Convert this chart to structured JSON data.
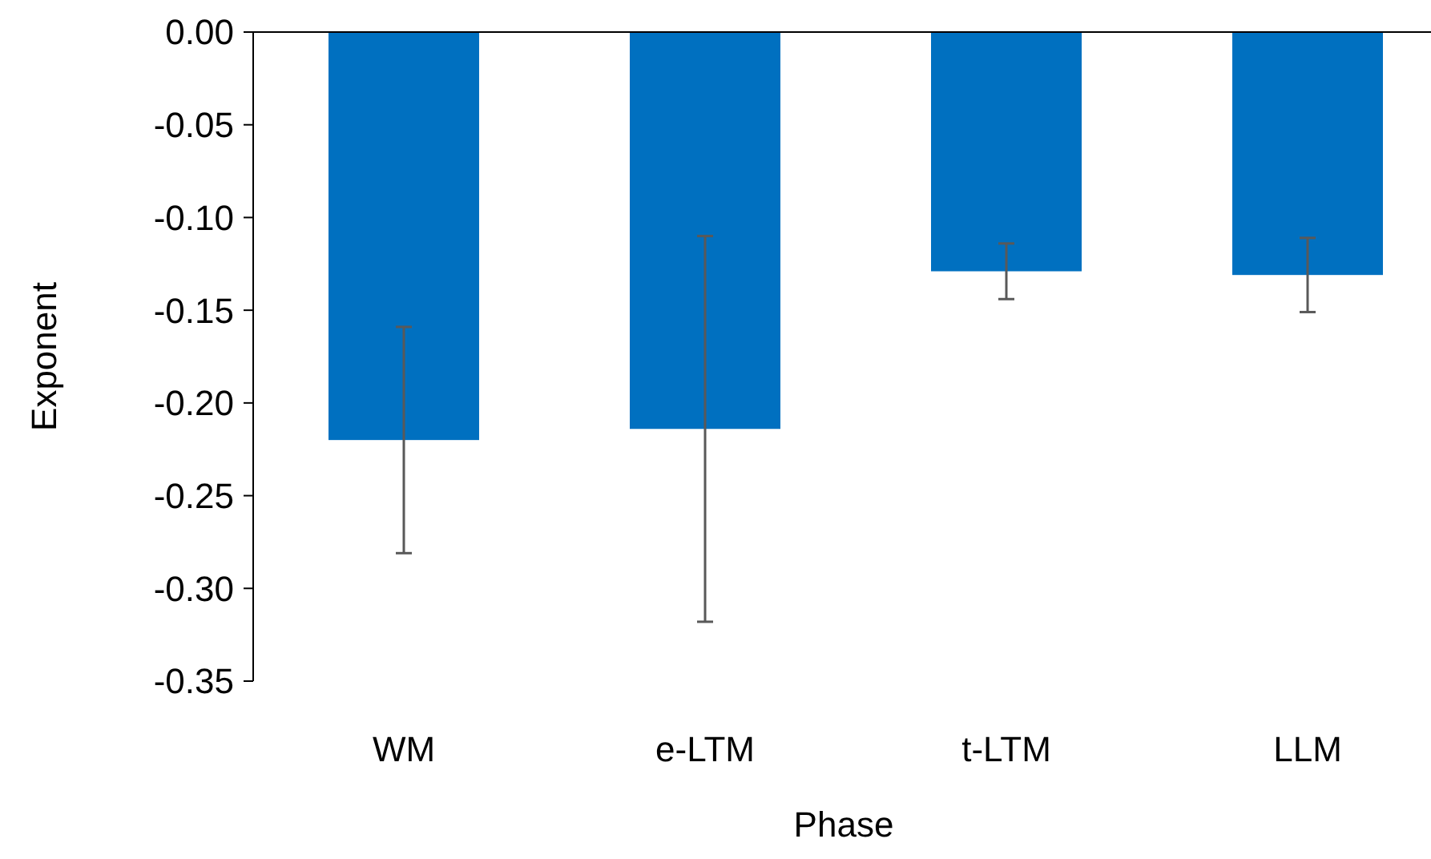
{
  "chart_data": {
    "type": "bar",
    "xlabel": "Phase",
    "ylabel": "Exponent",
    "categories": [
      "WM",
      "e-LTM",
      "t-LTM",
      "LLM"
    ],
    "values": [
      -0.22,
      -0.214,
      -0.129,
      -0.131
    ],
    "errors": [
      0.061,
      0.104,
      0.015,
      0.02
    ],
    "color": "#0070c0",
    "ylim": [
      -0.35,
      0
    ],
    "yticks": [
      {
        "value": 0,
        "label": "0.00"
      },
      {
        "value": -0.05,
        "label": "-0.05"
      },
      {
        "value": -0.1,
        "label": "-0.10"
      },
      {
        "value": -0.15,
        "label": "-0.15"
      },
      {
        "value": -0.2,
        "label": "-0.20"
      },
      {
        "value": -0.25,
        "label": "-0.25"
      },
      {
        "value": -0.3,
        "label": "-0.30"
      },
      {
        "value": -0.35,
        "label": "-0.35"
      }
    ],
    "grid": false
  }
}
